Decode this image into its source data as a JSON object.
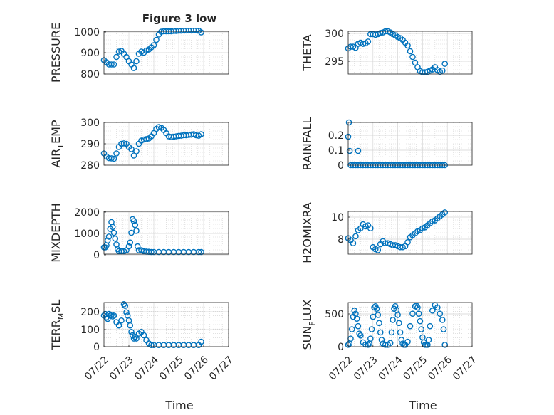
{
  "figure": {
    "title": "Figure 3 low",
    "xlabel": "Time"
  },
  "colors": {
    "marker": "#0072BD",
    "axis": "#262626",
    "grid": "#d0d0d0",
    "background": "#ffffff"
  },
  "chart_data": [
    {
      "type": "scatter",
      "ylabel": "PRESSURE",
      "ylim": [
        800,
        1000
      ],
      "yticks": [
        "800",
        "900",
        "1000"
      ],
      "xlim": [
        "07/22",
        "07/27"
      ],
      "xticks": [],
      "grid": true,
      "series": [
        {
          "x": [
            22.0,
            22.1,
            22.2,
            22.3,
            22.4,
            22.5,
            22.6,
            22.7,
            22.8,
            22.9,
            23.0,
            23.1,
            23.2,
            23.3,
            23.4,
            23.5,
            23.6,
            23.7,
            23.8,
            23.9,
            24.0,
            24.1,
            24.2,
            24.3,
            24.4,
            24.5,
            24.6,
            24.7,
            24.8,
            24.9,
            25.0,
            25.1,
            25.2,
            25.3,
            25.4,
            25.5,
            25.6,
            25.7,
            25.8,
            25.9
          ],
          "y": [
            865,
            855,
            845,
            845,
            845,
            880,
            905,
            908,
            895,
            880,
            860,
            845,
            828,
            860,
            895,
            905,
            900,
            910,
            915,
            925,
            935,
            960,
            985,
            998,
            1000,
            1000,
            1000,
            1000,
            1002,
            1002,
            1003,
            1003,
            1004,
            1004,
            1004,
            1005,
            1005,
            1005,
            1003,
            995
          ]
        }
      ]
    },
    {
      "type": "scatter",
      "ylabel": "THETA",
      "ylim": [
        293,
        300.5
      ],
      "yticks": [
        "295",
        "300"
      ],
      "xlim": [
        "07/22",
        "07/27"
      ],
      "xticks": [],
      "grid": true,
      "series": [
        {
          "x": [
            22.0,
            22.1,
            22.2,
            22.3,
            22.4,
            22.5,
            22.6,
            22.7,
            22.8,
            22.9,
            23.0,
            23.1,
            23.2,
            23.3,
            23.4,
            23.5,
            23.6,
            23.7,
            23.8,
            23.9,
            24.0,
            24.1,
            24.2,
            24.3,
            24.4,
            24.5,
            24.6,
            24.7,
            24.8,
            24.9,
            25.0,
            25.1,
            25.2,
            25.3,
            25.4,
            25.5,
            25.6,
            25.7,
            25.8,
            25.9
          ],
          "y": [
            297.5,
            297.8,
            297.8,
            297.6,
            298.3,
            298.5,
            298.3,
            298.4,
            298.7,
            300.0,
            300.0,
            299.9,
            300.0,
            300.2,
            300.3,
            300.5,
            300.5,
            300.3,
            300.0,
            299.8,
            299.5,
            299.3,
            299.0,
            298.5,
            298.0,
            297.0,
            296.0,
            295.0,
            294.2,
            293.5,
            293.3,
            293.3,
            293.4,
            293.6,
            293.8,
            294.2,
            293.7,
            293.4,
            293.6,
            294.8
          ]
        }
      ]
    },
    {
      "type": "scatter",
      "ylabel": "AIR_TEMP",
      "ylim": [
        280,
        300
      ],
      "yticks": [
        "280",
        "290",
        "300"
      ],
      "xlim": [
        "07/22",
        "07/27"
      ],
      "xticks": [],
      "grid": true,
      "series": [
        {
          "x": [
            22.0,
            22.1,
            22.2,
            22.3,
            22.4,
            22.5,
            22.6,
            22.7,
            22.8,
            22.9,
            23.0,
            23.1,
            23.2,
            23.3,
            23.4,
            23.5,
            23.6,
            23.7,
            23.8,
            23.9,
            24.0,
            24.1,
            24.2,
            24.3,
            24.4,
            24.5,
            24.6,
            24.7,
            24.8,
            24.9,
            25.0,
            25.1,
            25.2,
            25.3,
            25.4,
            25.5,
            25.6,
            25.7,
            25.8,
            25.9
          ],
          "y": [
            285.5,
            284.0,
            283.3,
            283.2,
            283.0,
            285.5,
            288.5,
            290.0,
            290.2,
            290.0,
            288.5,
            287.5,
            284.5,
            286.5,
            290.0,
            291.5,
            292.0,
            292.2,
            292.5,
            293.5,
            295.0,
            297.0,
            297.8,
            297.5,
            296.5,
            295.0,
            293.5,
            293.2,
            293.3,
            293.5,
            293.7,
            293.8,
            294.0,
            294.0,
            294.2,
            294.3,
            294.5,
            294.0,
            293.8,
            294.5
          ]
        }
      ]
    },
    {
      "type": "scatter",
      "ylabel": "RAINFALL",
      "ylim": [
        0,
        0.3
      ],
      "yticks": [
        "0",
        "0.1",
        "0.2"
      ],
      "xlim": [
        "07/22",
        "07/27"
      ],
      "xticks": [],
      "grid": true,
      "series": [
        {
          "x": [
            22.0,
            22.03,
            22.06,
            22.1,
            22.2,
            22.3,
            22.4,
            22.5,
            22.6,
            22.7,
            22.8,
            22.9,
            23.0,
            23.1,
            23.2,
            23.3,
            23.4,
            23.5,
            23.6,
            23.7,
            23.8,
            23.9,
            24.0,
            24.1,
            24.2,
            24.3,
            24.4,
            24.5,
            24.6,
            24.7,
            24.8,
            24.9,
            25.0,
            25.1,
            25.2,
            25.3,
            25.4,
            25.5,
            25.6,
            25.7,
            25.8,
            25.9,
            22.4
          ],
          "y": [
            0.2,
            0.3,
            0.1,
            0,
            0,
            0,
            0,
            0,
            0,
            0,
            0,
            0,
            0,
            0,
            0,
            0,
            0,
            0,
            0,
            0,
            0,
            0,
            0,
            0,
            0,
            0,
            0,
            0,
            0,
            0,
            0,
            0,
            0,
            0,
            0,
            0,
            0,
            0,
            0,
            0,
            0,
            0,
            0.1
          ]
        }
      ]
    },
    {
      "type": "scatter",
      "ylabel": "MIXDEPTH",
      "ylim": [
        -100,
        2100
      ],
      "yticks": [
        "0",
        "1000",
        "2000"
      ],
      "xlim": [
        "07/22",
        "07/27"
      ],
      "xticks": [],
      "grid": true,
      "series": [
        {
          "x": [
            22.0,
            22.05,
            22.1,
            22.15,
            22.2,
            22.25,
            22.3,
            22.35,
            22.4,
            22.45,
            22.5,
            22.55,
            22.6,
            22.7,
            22.8,
            22.9,
            23.0,
            23.05,
            23.1,
            23.15,
            23.2,
            23.25,
            23.3,
            23.35,
            23.4,
            23.5,
            23.6,
            23.7,
            23.8,
            23.9,
            24.0,
            24.2,
            24.4,
            24.6,
            24.8,
            25.0,
            25.2,
            25.4,
            25.6,
            25.8,
            25.9
          ],
          "y": [
            250,
            250,
            350,
            600,
            800,
            1200,
            1550,
            1300,
            1000,
            700,
            400,
            150,
            50,
            50,
            50,
            100,
            300,
            500,
            1000,
            1700,
            1600,
            1400,
            1100,
            300,
            100,
            100,
            50,
            30,
            20,
            10,
            10,
            10,
            10,
            10,
            10,
            10,
            10,
            10,
            10,
            10,
            10
          ]
        }
      ]
    },
    {
      "type": "scatter",
      "ylabel": "H2OMIXRA",
      "ylim": [
        6.2,
        10.5
      ],
      "yticks": [
        "8",
        "10"
      ],
      "xlim": [
        "07/22",
        "07/27"
      ],
      "xticks": [],
      "grid": true,
      "series": [
        {
          "x": [
            22.0,
            22.1,
            22.2,
            22.3,
            22.4,
            22.5,
            22.6,
            22.7,
            22.8,
            22.9,
            23.0,
            23.1,
            23.2,
            23.3,
            23.4,
            23.5,
            23.6,
            23.7,
            23.8,
            23.9,
            24.0,
            24.1,
            24.2,
            24.3,
            24.4,
            24.5,
            24.6,
            24.7,
            24.8,
            24.9,
            25.0,
            25.1,
            25.2,
            25.3,
            25.4,
            25.5,
            25.6,
            25.7,
            25.8,
            25.9
          ],
          "y": [
            7.8,
            7.6,
            7.3,
            8.0,
            8.6,
            8.8,
            9.2,
            9.0,
            9.1,
            8.8,
            6.9,
            6.7,
            6.6,
            7.2,
            7.5,
            7.3,
            7.3,
            7.2,
            7.1,
            7.1,
            7.0,
            6.9,
            6.9,
            7.0,
            7.4,
            7.9,
            8.1,
            8.3,
            8.5,
            8.6,
            8.8,
            8.9,
            9.1,
            9.3,
            9.5,
            9.6,
            9.8,
            10.0,
            10.2,
            10.4
          ]
        }
      ]
    },
    {
      "type": "scatter",
      "ylabel": "TERR_MSL",
      "ylim": [
        -10,
        260
      ],
      "yticks": [
        "0",
        "100",
        "200"
      ],
      "xlim": [
        "07/22",
        "07/27"
      ],
      "xticks": [
        "07/22",
        "07/23",
        "07/24",
        "07/25",
        "07/26",
        "07/27"
      ],
      "grid": true,
      "series": [
        {
          "x": [
            22.0,
            22.05,
            22.1,
            22.15,
            22.2,
            22.25,
            22.3,
            22.35,
            22.4,
            22.5,
            22.6,
            22.7,
            22.8,
            22.85,
            22.9,
            22.95,
            23.0,
            23.05,
            23.1,
            23.15,
            23.2,
            23.25,
            23.3,
            23.4,
            23.5,
            23.6,
            23.7,
            23.8,
            23.9,
            24.0,
            24.2,
            24.4,
            24.6,
            24.8,
            25.0,
            25.2,
            25.4,
            25.6,
            25.8,
            25.9
          ],
          "y": [
            180,
            190,
            170,
            160,
            190,
            180,
            185,
            175,
            180,
            140,
            120,
            150,
            250,
            240,
            200,
            180,
            150,
            120,
            80,
            60,
            40,
            50,
            40,
            70,
            80,
            60,
            30,
            10,
            0,
            0,
            0,
            0,
            0,
            0,
            0,
            0,
            0,
            0,
            0,
            20
          ]
        }
      ]
    },
    {
      "type": "scatter",
      "ylabel": "SUN_FLUX",
      "ylim": [
        -30,
        680
      ],
      "yticks": [
        "0",
        "500"
      ],
      "xlim": [
        "07/22",
        "07/27"
      ],
      "xticks": [
        "07/22",
        "07/23",
        "07/24",
        "07/25",
        "07/26",
        "07/27"
      ],
      "grid": true,
      "series": [
        {
          "x": [
            22.0,
            22.05,
            22.1,
            22.15,
            22.2,
            22.25,
            22.3,
            22.35,
            22.4,
            22.45,
            22.5,
            22.6,
            22.7,
            22.8,
            22.85,
            22.9,
            22.95,
            23.0,
            23.05,
            23.1,
            23.15,
            23.2,
            23.25,
            23.3,
            23.35,
            23.4,
            23.5,
            23.6,
            23.7,
            23.75,
            23.8,
            23.85,
            23.9,
            23.95,
            24.0,
            24.05,
            24.1,
            24.15,
            24.2,
            24.25,
            24.3,
            24.4,
            24.5,
            24.6,
            24.7,
            24.75,
            24.8,
            24.85,
            24.9,
            24.95,
            25.0,
            25.05,
            25.1,
            25.15,
            25.2,
            25.25,
            25.3,
            25.4,
            25.5,
            25.6,
            25.7,
            25.8,
            25.85,
            25.9
          ],
          "y": [
            0,
            20,
            100,
            250,
            450,
            550,
            500,
            420,
            300,
            180,
            150,
            40,
            5,
            0,
            20,
            100,
            250,
            450,
            600,
            620,
            580,
            480,
            350,
            200,
            80,
            20,
            0,
            0,
            30,
            200,
            400,
            580,
            620,
            560,
            480,
            350,
            200,
            80,
            20,
            0,
            0,
            50,
            300,
            500,
            620,
            630,
            600,
            500,
            380,
            250,
            120,
            40,
            0,
            0,
            0,
            80,
            300,
            550,
            640,
            600,
            500,
            400,
            250,
            0
          ]
        }
      ]
    }
  ]
}
